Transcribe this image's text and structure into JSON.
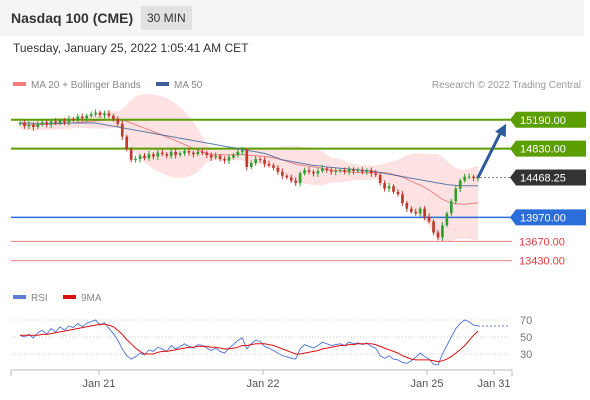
{
  "header": {
    "title": "Nasdaq 100 (CME)",
    "interval": "30 MIN",
    "datetime": "Tuesday, January 25, 2022 1:05:41 AM CET"
  },
  "legend": {
    "bollinger_label": "MA 20 + Bollinger Bands",
    "ma50_label": "MA 50",
    "credit": "Research © 2022 Trading Central",
    "rsi_label": "RSI",
    "ma9_label": "9MA"
  },
  "colors": {
    "up_candle": "#2f9e2f",
    "down_candle": "#c0392b",
    "resistance": "#5b9e00",
    "support": "#2a6ddb",
    "target_lines": "#f08080",
    "ma50": "#3a5f9a",
    "bollinger_fill": "#fbd8d8",
    "current_price_bg": "#333333",
    "arrow": "#2d5a9a",
    "rsi": "#5b7fd6",
    "rsi_ma": "#dd1111"
  },
  "chart_data": [
    {
      "type": "candlestick",
      "instrument": "Nasdaq 100 (CME)",
      "interval": "30 MIN",
      "x_tick_labels": [
        "Jan 21",
        "Jan 22",
        "Jan 25",
        "Jan 31"
      ],
      "ylim": [
        13300,
        15400
      ],
      "levels": [
        {
          "value": 15190.0,
          "label": "15190.00",
          "kind": "resistance"
        },
        {
          "value": 14830.0,
          "label": "14830.00",
          "kind": "resistance"
        },
        {
          "value": 14468.25,
          "label": "14468.25",
          "kind": "current"
        },
        {
          "value": 13970.0,
          "label": "13970.00",
          "kind": "support"
        },
        {
          "value": 13670.0,
          "label": "13670.00",
          "kind": "target"
        },
        {
          "value": 13430.0,
          "label": "13430.00",
          "kind": "target"
        }
      ],
      "close": [
        15150,
        15110,
        15130,
        15100,
        15140,
        15160,
        15130,
        15170,
        15150,
        15180,
        15160,
        15200,
        15190,
        15230,
        15210,
        15240,
        15260,
        15280,
        15250,
        15270,
        15240,
        15200,
        15140,
        14980,
        14820,
        14690,
        14700,
        14740,
        14710,
        14760,
        14730,
        14780,
        14760,
        14740,
        14790,
        14750,
        14770,
        14800,
        14780,
        14760,
        14790,
        14780,
        14750,
        14720,
        14740,
        14700,
        14680,
        14720,
        14750,
        14790,
        14810,
        14600,
        14650,
        14700,
        14690,
        14640,
        14620,
        14590,
        14540,
        14490,
        14470,
        14430,
        14400,
        14520,
        14560,
        14540,
        14520,
        14550,
        14580,
        14560,
        14540,
        14550,
        14560,
        14540,
        14570,
        14550,
        14560,
        14540,
        14560,
        14520,
        14500,
        14400,
        14330,
        14360,
        14290,
        14260,
        14150,
        14080,
        14040,
        14020,
        14080,
        13980,
        13920,
        13780,
        13720,
        13870,
        14020,
        14170,
        14330,
        14430,
        14480,
        14480,
        14460,
        14468
      ],
      "ma50": [
        15150,
        15150,
        15150,
        15145,
        15140,
        15140,
        15140,
        15140,
        15145,
        15145,
        15150,
        15150,
        15150,
        15150,
        15150,
        15150,
        15150,
        15150,
        15140,
        15130,
        15120,
        15110,
        15100,
        15090,
        15080,
        15070,
        15060,
        15050,
        15040,
        15030,
        15020,
        15010,
        15000,
        14990,
        14980,
        14970,
        14960,
        14950,
        14940,
        14930,
        14920,
        14910,
        14900,
        14890,
        14880,
        14870,
        14860,
        14850,
        14840,
        14830,
        14820,
        14810,
        14800,
        14790,
        14780,
        14770,
        14750,
        14730,
        14710,
        14690,
        14680,
        14670,
        14660,
        14650,
        14640,
        14630,
        14620,
        14615,
        14610,
        14600,
        14595,
        14590,
        14585,
        14580,
        14575,
        14570,
        14565,
        14560,
        14555,
        14550,
        14540,
        14530,
        14520,
        14510,
        14500,
        14490,
        14480,
        14470,
        14460,
        14450,
        14440,
        14430,
        14420,
        14410,
        14400,
        14390,
        14380,
        14375,
        14370,
        14368,
        14366,
        14365,
        14365,
        14365
      ]
    },
    {
      "type": "line",
      "title": "RSI",
      "series": [
        {
          "name": "RSI"
        },
        {
          "name": "9MA"
        }
      ],
      "y_ticks": [
        70,
        50,
        30
      ],
      "rsi": [
        52,
        50,
        53,
        49,
        55,
        58,
        53,
        60,
        56,
        62,
        58,
        63,
        61,
        66,
        62,
        66,
        68,
        70,
        64,
        67,
        60,
        54,
        46,
        36,
        28,
        24,
        27,
        31,
        29,
        35,
        33,
        38,
        36,
        33,
        40,
        36,
        39,
        42,
        39,
        37,
        41,
        40,
        37,
        34,
        37,
        33,
        31,
        37,
        41,
        46,
        49,
        36,
        42,
        46,
        45,
        39,
        37,
        34,
        31,
        28,
        27,
        25,
        24,
        36,
        41,
        39,
        37,
        40,
        44,
        42,
        40,
        41,
        42,
        40,
        44,
        42,
        43,
        41,
        43,
        39,
        37,
        28,
        25,
        28,
        24,
        23,
        20,
        19,
        22,
        26,
        31,
        27,
        24,
        18,
        17,
        30,
        40,
        50,
        60,
        66,
        70,
        68,
        64,
        63
      ],
      "rsi_ma": [
        52,
        52,
        52,
        52,
        52,
        53,
        53,
        54,
        55,
        56,
        57,
        58,
        59,
        60,
        61,
        62,
        63,
        64,
        65,
        65,
        64,
        62,
        58,
        53,
        47,
        42,
        37,
        33,
        30,
        30,
        30,
        32,
        33,
        33,
        34,
        35,
        36,
        37,
        38,
        38,
        39,
        39,
        39,
        38,
        38,
        37,
        36,
        36,
        37,
        38,
        40,
        40,
        41,
        42,
        42,
        42,
        41,
        40,
        38,
        36,
        34,
        32,
        30,
        30,
        31,
        32,
        33,
        34,
        36,
        37,
        38,
        39,
        40,
        40,
        41,
        41,
        42,
        42,
        42,
        42,
        41,
        39,
        37,
        35,
        33,
        31,
        28,
        26,
        24,
        23,
        23,
        23,
        23,
        22,
        21,
        22,
        24,
        27,
        31,
        35,
        40,
        46,
        52,
        57
      ]
    }
  ]
}
